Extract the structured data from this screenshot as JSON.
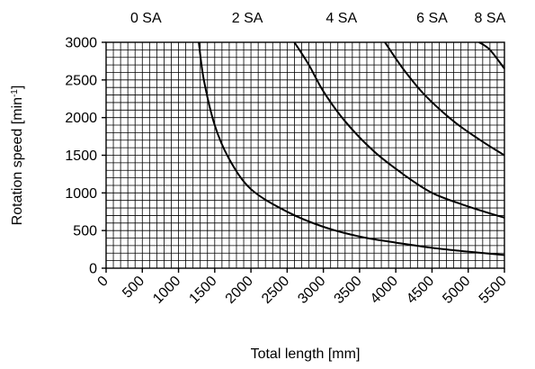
{
  "chart_data": {
    "type": "line",
    "xlabel": "Total length [mm]",
    "ylabel": "Rotation speed [min",
    "ylabel_sup": "-1",
    "ylabel_end": "]",
    "xlim": [
      0,
      5500
    ],
    "ylim": [
      0,
      3000
    ],
    "x_ticks": [
      "0",
      "500",
      "1000",
      "1500",
      "2000",
      "2500",
      "3000",
      "3500",
      "4000",
      "4500",
      "5000",
      "5500"
    ],
    "y_ticks": [
      "0",
      "500",
      "1000",
      "1500",
      "2000",
      "2500",
      "3000"
    ],
    "grid": "minor every 100 mm and 100 min-1",
    "top_labels": [
      {
        "label": "0 SA",
        "x": 550
      },
      {
        "label": "2 SA",
        "x": 1950
      },
      {
        "label": "4 SA",
        "x": 3250
      },
      {
        "label": "6 SA",
        "x": 4500
      },
      {
        "label": "8 SA",
        "x": 5300
      }
    ],
    "series": [
      {
        "points": [
          [
            1280,
            3000
          ],
          [
            1350,
            2500
          ],
          [
            1500,
            1900
          ],
          [
            1700,
            1450
          ],
          [
            2000,
            1050
          ],
          [
            2500,
            750
          ],
          [
            3000,
            550
          ],
          [
            3500,
            420
          ],
          [
            4000,
            340
          ],
          [
            4500,
            270
          ],
          [
            5000,
            220
          ],
          [
            5500,
            175
          ]
        ]
      },
      {
        "points": [
          [
            2600,
            3000
          ],
          [
            2800,
            2700
          ],
          [
            3000,
            2350
          ],
          [
            3300,
            1950
          ],
          [
            3700,
            1550
          ],
          [
            4100,
            1250
          ],
          [
            4500,
            1000
          ],
          [
            5000,
            820
          ],
          [
            5500,
            670
          ]
        ]
      },
      {
        "points": [
          [
            3850,
            3000
          ],
          [
            4100,
            2650
          ],
          [
            4400,
            2300
          ],
          [
            4800,
            1950
          ],
          [
            5200,
            1680
          ],
          [
            5500,
            1500
          ]
        ]
      },
      {
        "points": [
          [
            5150,
            3000
          ],
          [
            5300,
            2900
          ],
          [
            5500,
            2650
          ]
        ]
      }
    ]
  }
}
